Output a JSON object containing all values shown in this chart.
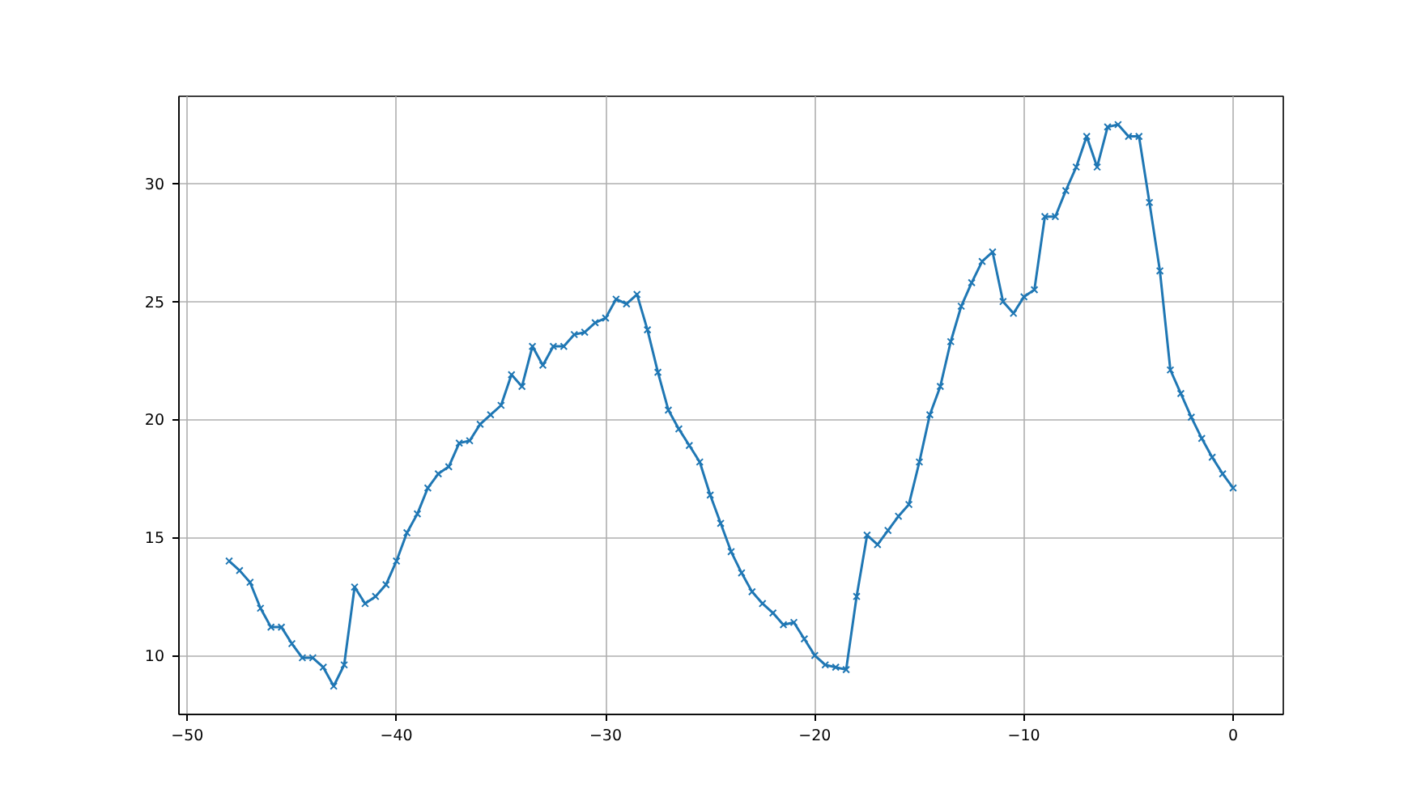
{
  "chart_data": {
    "type": "line",
    "x": [
      -48,
      -47.5,
      -47,
      -46.5,
      -46,
      -45.5,
      -45,
      -44.5,
      -44,
      -43.5,
      -43,
      -42.5,
      -42,
      -41.5,
      -41,
      -40.5,
      -40,
      -39.5,
      -39,
      -38.5,
      -38,
      -37.5,
      -37,
      -36.5,
      -36,
      -35.5,
      -35,
      -34.5,
      -34,
      -33.5,
      -33,
      -32.5,
      -32,
      -31.5,
      -31,
      -30.5,
      -30,
      -29.5,
      -29,
      -28.5,
      -28,
      -27.5,
      -27,
      -26.5,
      -26,
      -25.5,
      -25,
      -24.5,
      -24,
      -23.5,
      -23,
      -22.5,
      -22,
      -21.5,
      -21,
      -20.5,
      -20,
      -19.5,
      -19,
      -18.5,
      -18,
      -17.5,
      -17,
      -16.5,
      -16,
      -15.5,
      -15,
      -14.5,
      -14,
      -13.5,
      -13,
      -12.5,
      -12,
      -11.5,
      -11,
      -10.5,
      -10,
      -9.5,
      -9,
      -8.5,
      -8,
      -7.5,
      -7,
      -6.5,
      -6,
      -5.5,
      -5,
      -4.5,
      -4,
      -3.5,
      -3,
      -2.5,
      -2,
      -1.5,
      -1,
      -0.5,
      0
    ],
    "series": [
      {
        "color": "#1f77b4",
        "values": [
          14.0,
          13.6,
          13.1,
          12.0,
          11.2,
          11.2,
          10.5,
          9.9,
          9.9,
          9.5,
          8.7,
          9.6,
          12.9,
          12.2,
          12.5,
          13.0,
          14.0,
          15.2,
          16.0,
          17.1,
          17.7,
          18.0,
          19.0,
          19.1,
          19.8,
          20.2,
          20.6,
          21.9,
          21.4,
          23.1,
          22.3,
          23.1,
          23.1,
          23.6,
          23.7,
          24.1,
          24.3,
          25.1,
          24.9,
          25.3,
          23.8,
          22.0,
          20.4,
          19.6,
          18.9,
          18.2,
          16.8,
          15.6,
          14.4,
          13.5,
          12.7,
          12.2,
          11.8,
          11.3,
          11.4,
          10.7,
          10.0,
          9.6,
          9.5,
          9.4,
          12.5,
          15.1,
          14.7,
          15.3,
          15.9,
          16.4,
          18.2,
          20.2,
          21.4,
          23.3,
          24.8,
          25.8,
          26.7,
          27.1,
          25.0,
          24.5,
          25.2,
          25.5,
          28.6,
          28.6,
          29.7,
          30.7,
          32.0,
          30.7,
          32.4,
          32.5,
          32.0,
          32.0,
          29.2,
          26.3,
          22.1,
          21.1,
          20.1,
          19.2,
          18.4,
          17.7,
          17.1
        ]
      }
    ],
    "xlim": [
      -50.4,
      2.4
    ],
    "ylim": [
      7.5,
      33.7
    ],
    "xticks": [
      {
        "value": -50,
        "label": "−50"
      },
      {
        "value": -40,
        "label": "−40"
      },
      {
        "value": -30,
        "label": "−30"
      },
      {
        "value": -20,
        "label": "−20"
      },
      {
        "value": -10,
        "label": "−10"
      },
      0
    ],
    "yticks": [
      10,
      15,
      20,
      25,
      30
    ],
    "grid": true,
    "marker": "cross",
    "line_style": "solid"
  }
}
